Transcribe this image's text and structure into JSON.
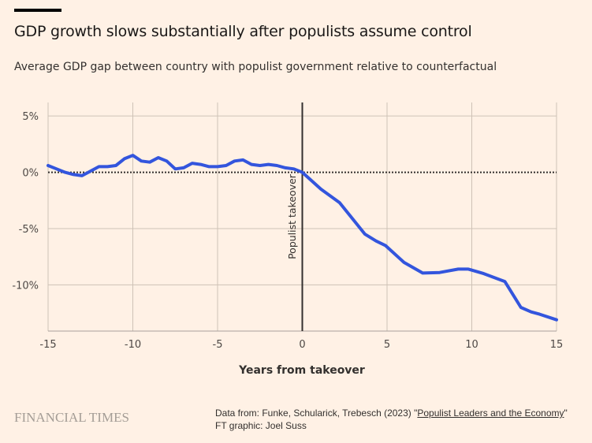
{
  "header": {
    "title": "GDP growth slows substantially after populists assume control",
    "subtitle": "Average GDP gap between country with populist government relative to counterfactual"
  },
  "chart_data": {
    "type": "line",
    "title": "GDP growth slows substantially after populists assume control",
    "subtitle": "Average GDP gap between country with populist government relative to counterfactual",
    "xlabel": "Years from takeover",
    "ylabel": "",
    "xlim": [
      -15,
      15
    ],
    "ylim": [
      -14.1,
      6.2
    ],
    "xticks": [
      -15,
      -10,
      -5,
      0,
      5,
      10,
      15
    ],
    "xtick_labels": [
      "-15",
      "-10",
      "-5",
      "0",
      "5",
      "10",
      "15"
    ],
    "yticks": [
      5,
      0,
      -5,
      -10
    ],
    "ytick_labels": [
      "5%",
      "0%",
      "-5%",
      "-10%"
    ],
    "grid": true,
    "series_color": "#3355dd",
    "annotation": {
      "x": 0,
      "label": "Populist takeover"
    },
    "zero_line": "dotted",
    "series": [
      {
        "x": [
          -15,
          -14.5,
          -14,
          -13.5,
          -13,
          -12.5,
          -12,
          -11.5,
          -11,
          -10.5,
          -10,
          -9.5,
          -9,
          -8.5,
          -8,
          -7.5,
          -7,
          -6.5,
          -6,
          -5.5,
          -5,
          -4.5,
          -4,
          -3.5,
          -3,
          -2.5,
          -2,
          -1.5,
          -1,
          -0.5,
          0,
          1.1,
          2.2,
          3.7,
          4.35,
          4.9,
          6.0,
          7.1,
          8.1,
          9.2,
          9.8,
          10.7,
          11.95,
          12.9,
          13.5,
          14.0,
          15
        ],
        "y": [
          0.6,
          0.3,
          0.0,
          -0.2,
          -0.3,
          0.1,
          0.5,
          0.5,
          0.6,
          1.2,
          1.5,
          1.0,
          0.9,
          1.3,
          1.0,
          0.3,
          0.4,
          0.8,
          0.7,
          0.5,
          0.5,
          0.6,
          1.0,
          1.1,
          0.7,
          0.6,
          0.7,
          0.6,
          0.4,
          0.3,
          0.0,
          -1.5,
          -2.7,
          -5.5,
          -6.1,
          -6.5,
          -8.0,
          -8.95,
          -8.9,
          -8.6,
          -8.6,
          -9.0,
          -9.7,
          -12.0,
          -12.4,
          -12.6,
          -13.1
        ]
      }
    ]
  },
  "footer": {
    "logo": "FINANCIAL TIMES",
    "source_prefix": "Data from: Funke, Schularick, Trebesch (2023) \"",
    "source_link": "Populist Leaders and the Economy",
    "source_suffix": "\"",
    "credit": "FT graphic: Joel Suss"
  }
}
